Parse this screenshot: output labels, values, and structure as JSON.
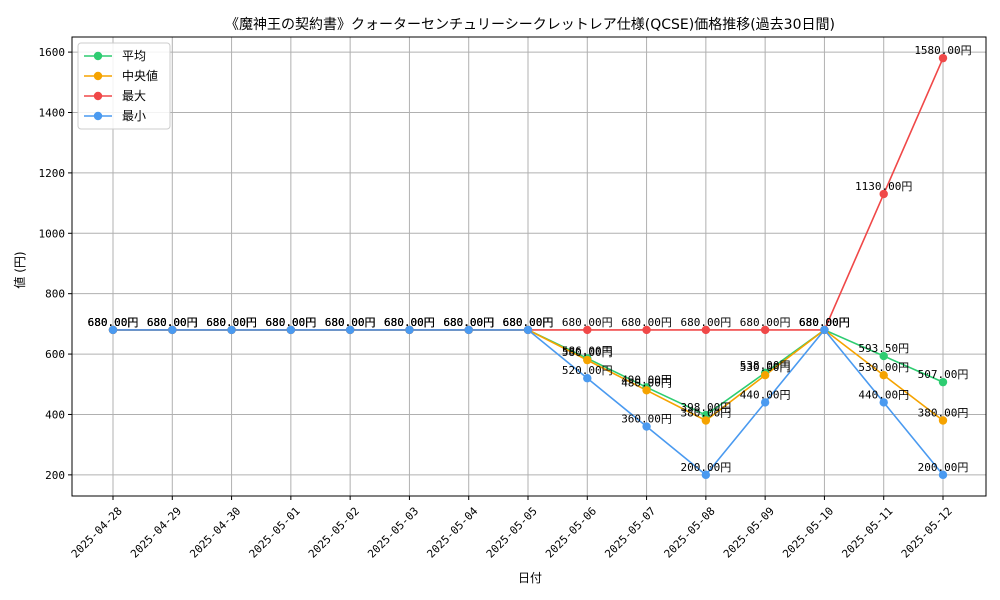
{
  "chart_data": {
    "type": "line",
    "title": "《魔神王の契約書》クォーターセンチュリーシークレットレア仕様(QCSE)価格推移(過去30日間)",
    "xlabel": "日付",
    "ylabel": "値 (円)",
    "ylim": [
      130,
      1650
    ],
    "yticks": [
      200,
      400,
      600,
      800,
      1000,
      1200,
      1400,
      1600
    ],
    "grid": true,
    "legend_position": "top-left",
    "value_suffix": "円",
    "categories": [
      "2025-04-28",
      "2025-04-29",
      "2025-04-30",
      "2025-05-01",
      "2025-05-02",
      "2025-05-03",
      "2025-05-04",
      "2025-05-05",
      "2025-05-06",
      "2025-05-07",
      "2025-05-08",
      "2025-05-09",
      "2025-05-10",
      "2025-05-11",
      "2025-05-12"
    ],
    "series": [
      {
        "name": "平均",
        "color": "#2ecc71",
        "values": [
          680,
          680,
          680,
          680,
          680,
          680,
          680,
          680,
          586,
          490,
          398,
          538,
          680,
          593.5,
          507
        ],
        "labels": [
          "680.00円",
          "680.00円",
          "680.00円",
          "680.00円",
          "680.00円",
          "680.00円",
          "680.00円",
          "680.00円",
          "586.00円",
          "490.00円",
          "398.00円",
          "538.00円",
          "680.00円",
          "593.50円",
          "507.00円"
        ]
      },
      {
        "name": "中央値",
        "color": "#f5a300",
        "values": [
          680,
          680,
          680,
          680,
          680,
          680,
          680,
          680,
          580,
          480,
          380,
          530,
          680,
          530,
          380
        ],
        "labels": [
          "680.00円",
          "680.00円",
          "680.00円",
          "680.00円",
          "680.00円",
          "680.00円",
          "680.00円",
          "680.00円",
          "580.00円",
          "480.00円",
          "380.00円",
          "530.00円",
          "680.00円",
          "530.00円",
          "380.00円"
        ]
      },
      {
        "name": "最大",
        "color": "#f04848",
        "values": [
          680,
          680,
          680,
          680,
          680,
          680,
          680,
          680,
          680,
          680,
          680,
          680,
          680,
          1130,
          1580
        ],
        "labels": [
          "680.00円",
          "680.00円",
          "680.00円",
          "680.00円",
          "680.00円",
          "680.00円",
          "680.00円",
          "680.00円",
          "680.00円",
          "680.00円",
          "680.00円",
          "680.00円",
          "680.00円",
          "1130.00円",
          "1580.00円"
        ]
      },
      {
        "name": "最小",
        "color": "#4a9af0",
        "values": [
          680,
          680,
          680,
          680,
          680,
          680,
          680,
          680,
          520,
          360,
          200,
          440,
          680,
          440,
          200
        ],
        "labels": [
          "680.00円",
          "680.00円",
          "680.00円",
          "680.00円",
          "680.00円",
          "680.00円",
          "680.00円",
          "680.00円",
          "520.00円",
          "360.00円",
          "200.00円",
          "440.00円",
          "680.00円",
          "440.00円",
          "200.00円"
        ]
      }
    ]
  }
}
